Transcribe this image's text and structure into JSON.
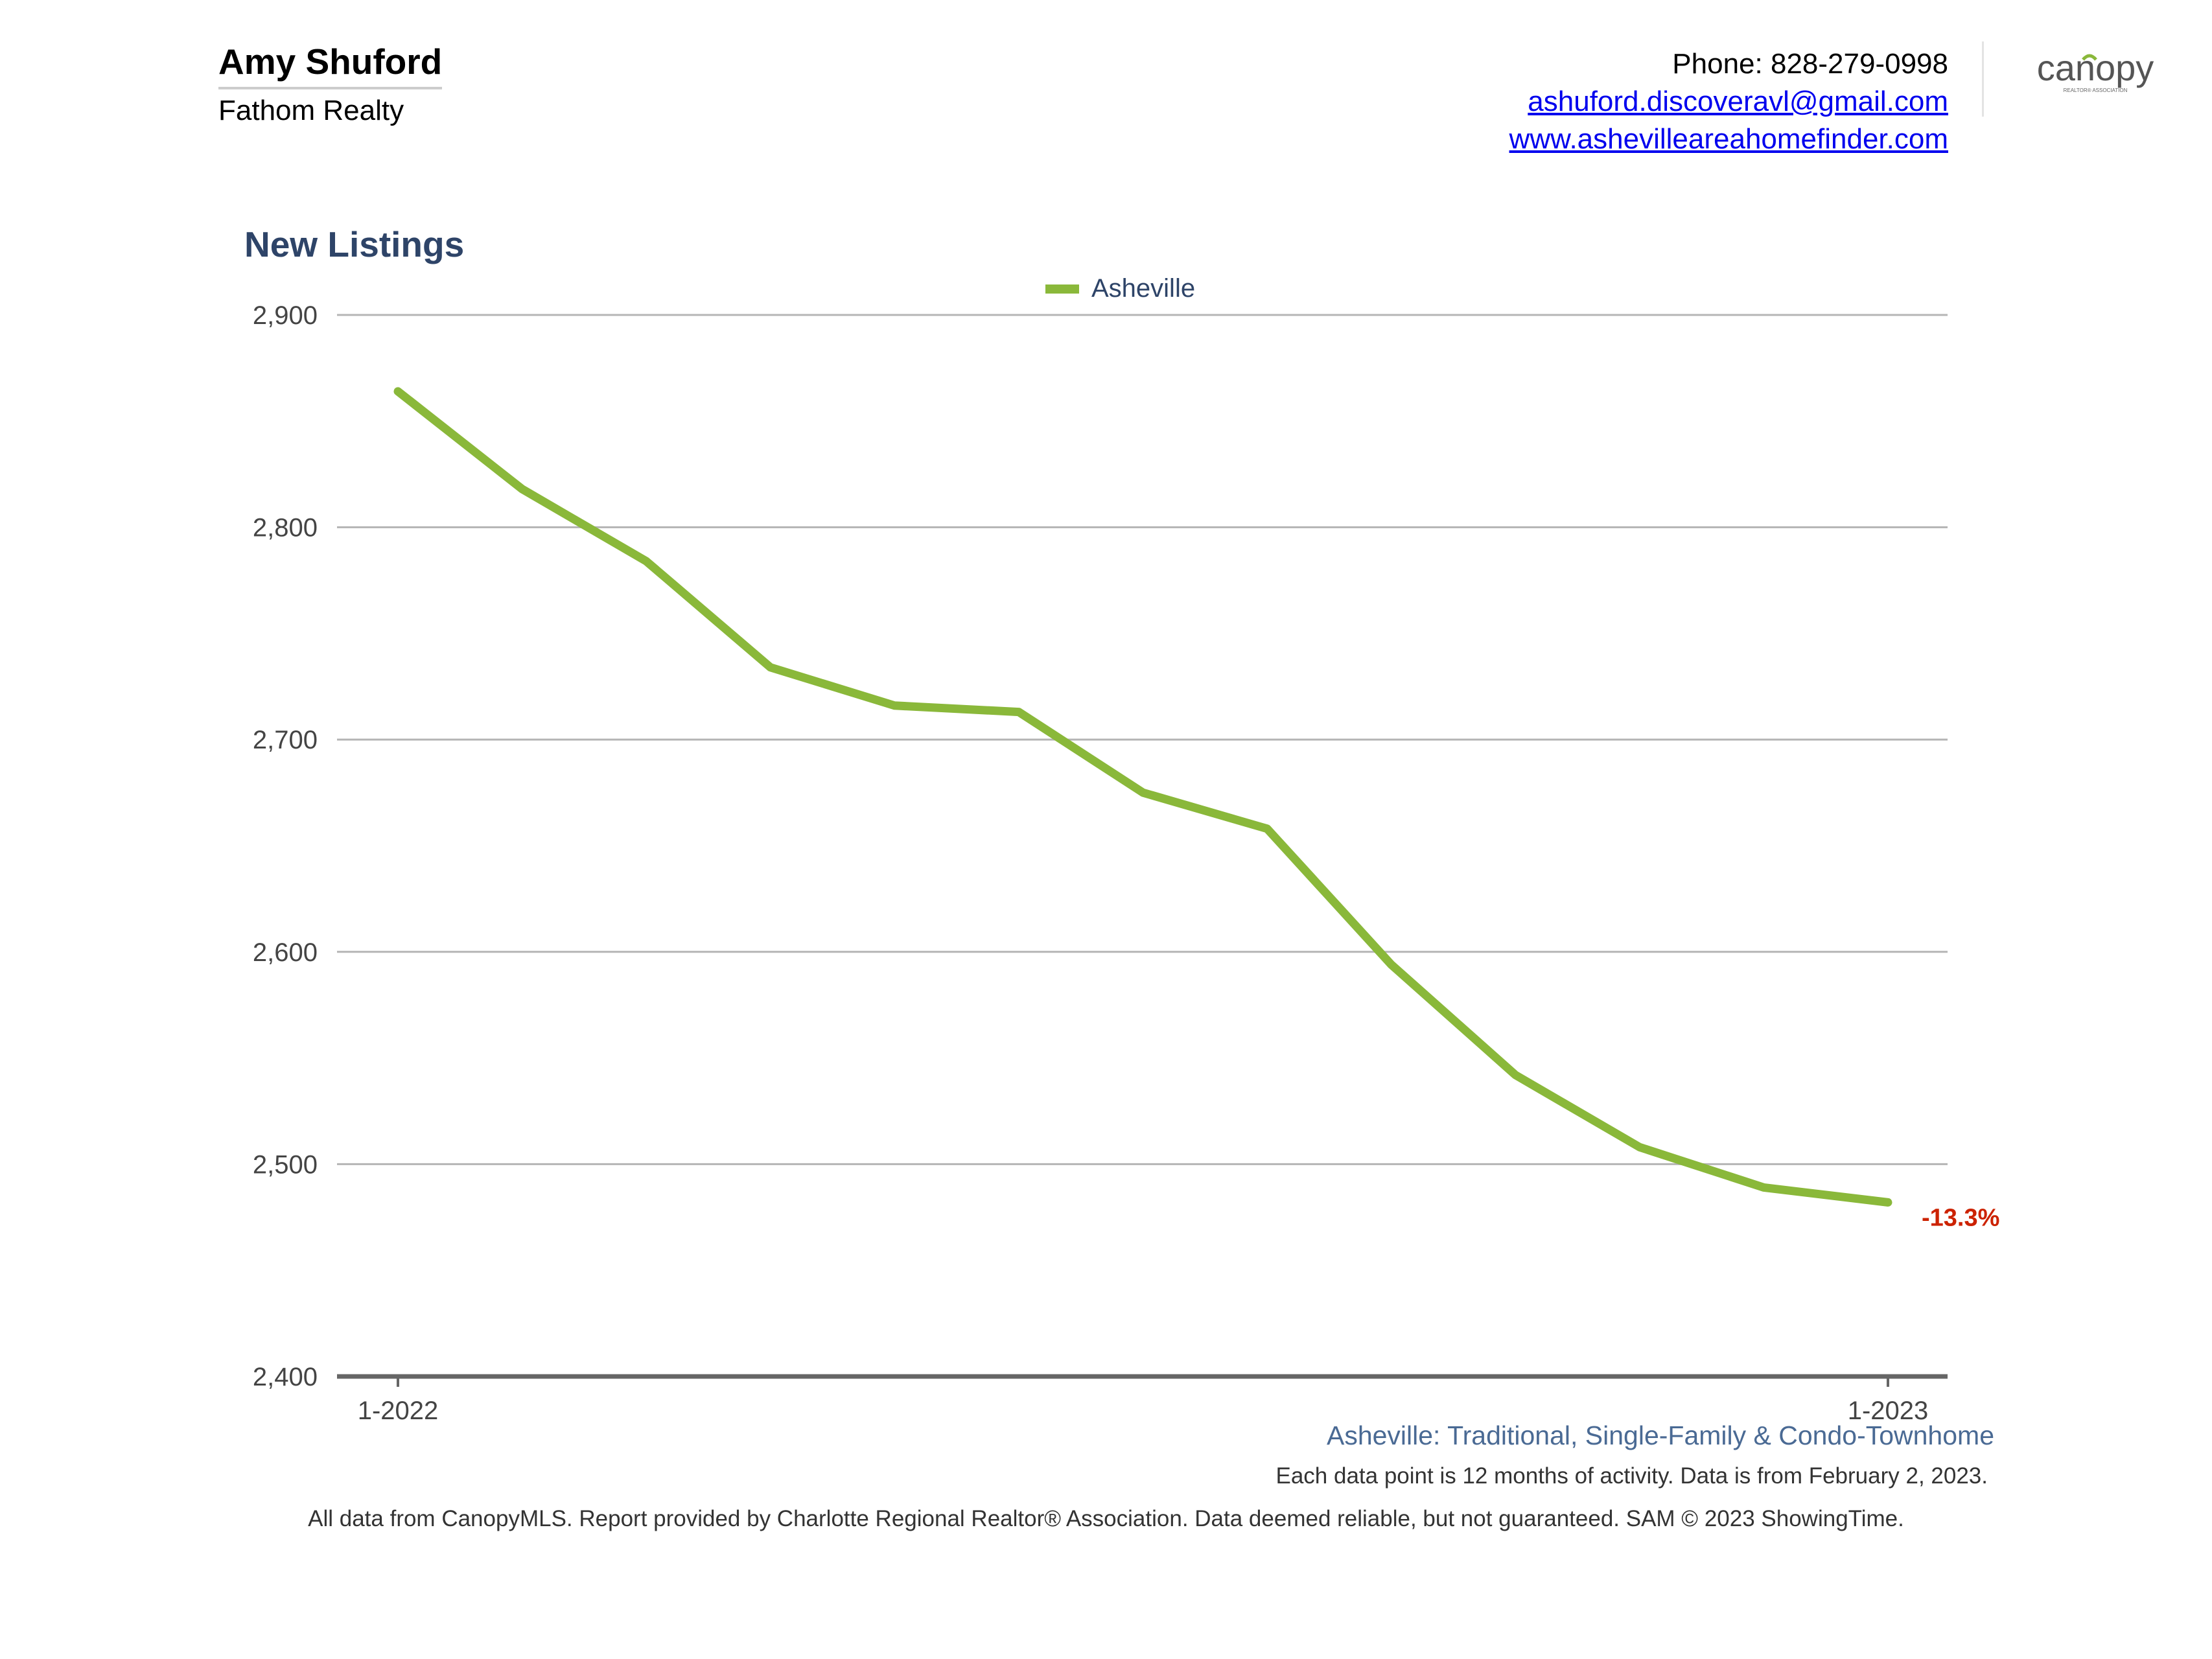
{
  "header": {
    "agent_name": "Amy Shuford",
    "company": "Fathom Realty",
    "phone": "Phone: 828-279-0998",
    "email": "ashuford.discoveravl@gmail.com",
    "website": "www.ashevilleareahomefinder.com",
    "logo_text": "canopy",
    "logo_subtext": "REALTOR® ASSOCIATION"
  },
  "chart_data": {
    "type": "line",
    "title": "New Listings",
    "legend_position": "top-center",
    "grid": true,
    "ylim": [
      2400,
      2900
    ],
    "yticks": [
      2400,
      2500,
      2600,
      2700,
      2800,
      2900
    ],
    "ytick_labels": [
      "2,400",
      "2,500",
      "2,600",
      "2,700",
      "2,800",
      "2,900"
    ],
    "x": [
      "1-2022",
      "2-2022",
      "3-2022",
      "4-2022",
      "5-2022",
      "6-2022",
      "7-2022",
      "8-2022",
      "9-2022",
      "10-2022",
      "11-2022",
      "12-2022",
      "1-2023"
    ],
    "xtick_labels": [
      "1-2022",
      "1-2023"
    ],
    "series": [
      {
        "name": "Asheville",
        "color": "#8ab83a",
        "values": [
          2864,
          2818,
          2784,
          2734,
          2716,
          2713,
          2675,
          2658,
          2594,
          2542,
          2508,
          2489,
          2482
        ]
      }
    ],
    "annotation": {
      "text": "-13.3%",
      "color": "#cc2200"
    }
  },
  "footer": {
    "subtitle": "Asheville: Traditional, Single-Family & Condo-Townhome",
    "footnote": "Each data point is 12 months of activity. Data is from February 2, 2023.",
    "disclaimer": "All data from CanopyMLS. Report provided by Charlotte Regional Realtor® Association. Data deemed reliable, but not guaranteed. SAM © 2023 ShowingTime."
  }
}
